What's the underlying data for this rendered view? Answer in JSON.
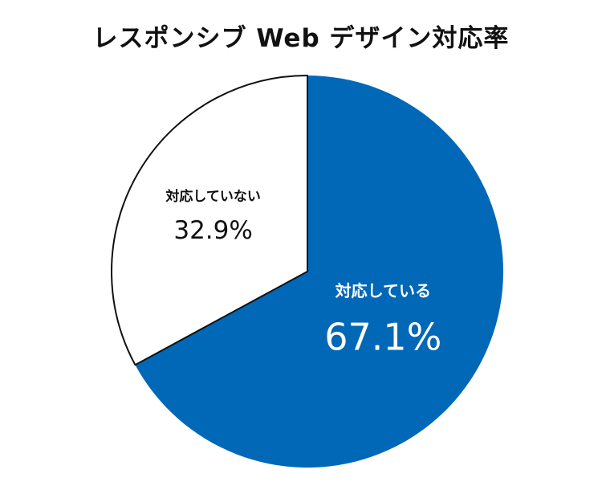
{
  "chart_data": {
    "type": "pie",
    "title": "レスポンシブ Web デザイン対応率",
    "slices": [
      {
        "label": "対応している",
        "value": 67.1,
        "display": "67.1%",
        "color": "#0068b7"
      },
      {
        "label": "対応していない",
        "value": 32.9,
        "display": "32.9%",
        "color": "#ffffff"
      }
    ],
    "start": "12 o'clock",
    "direction": "clockwise",
    "legend": "none",
    "outline_color": "#111111"
  }
}
